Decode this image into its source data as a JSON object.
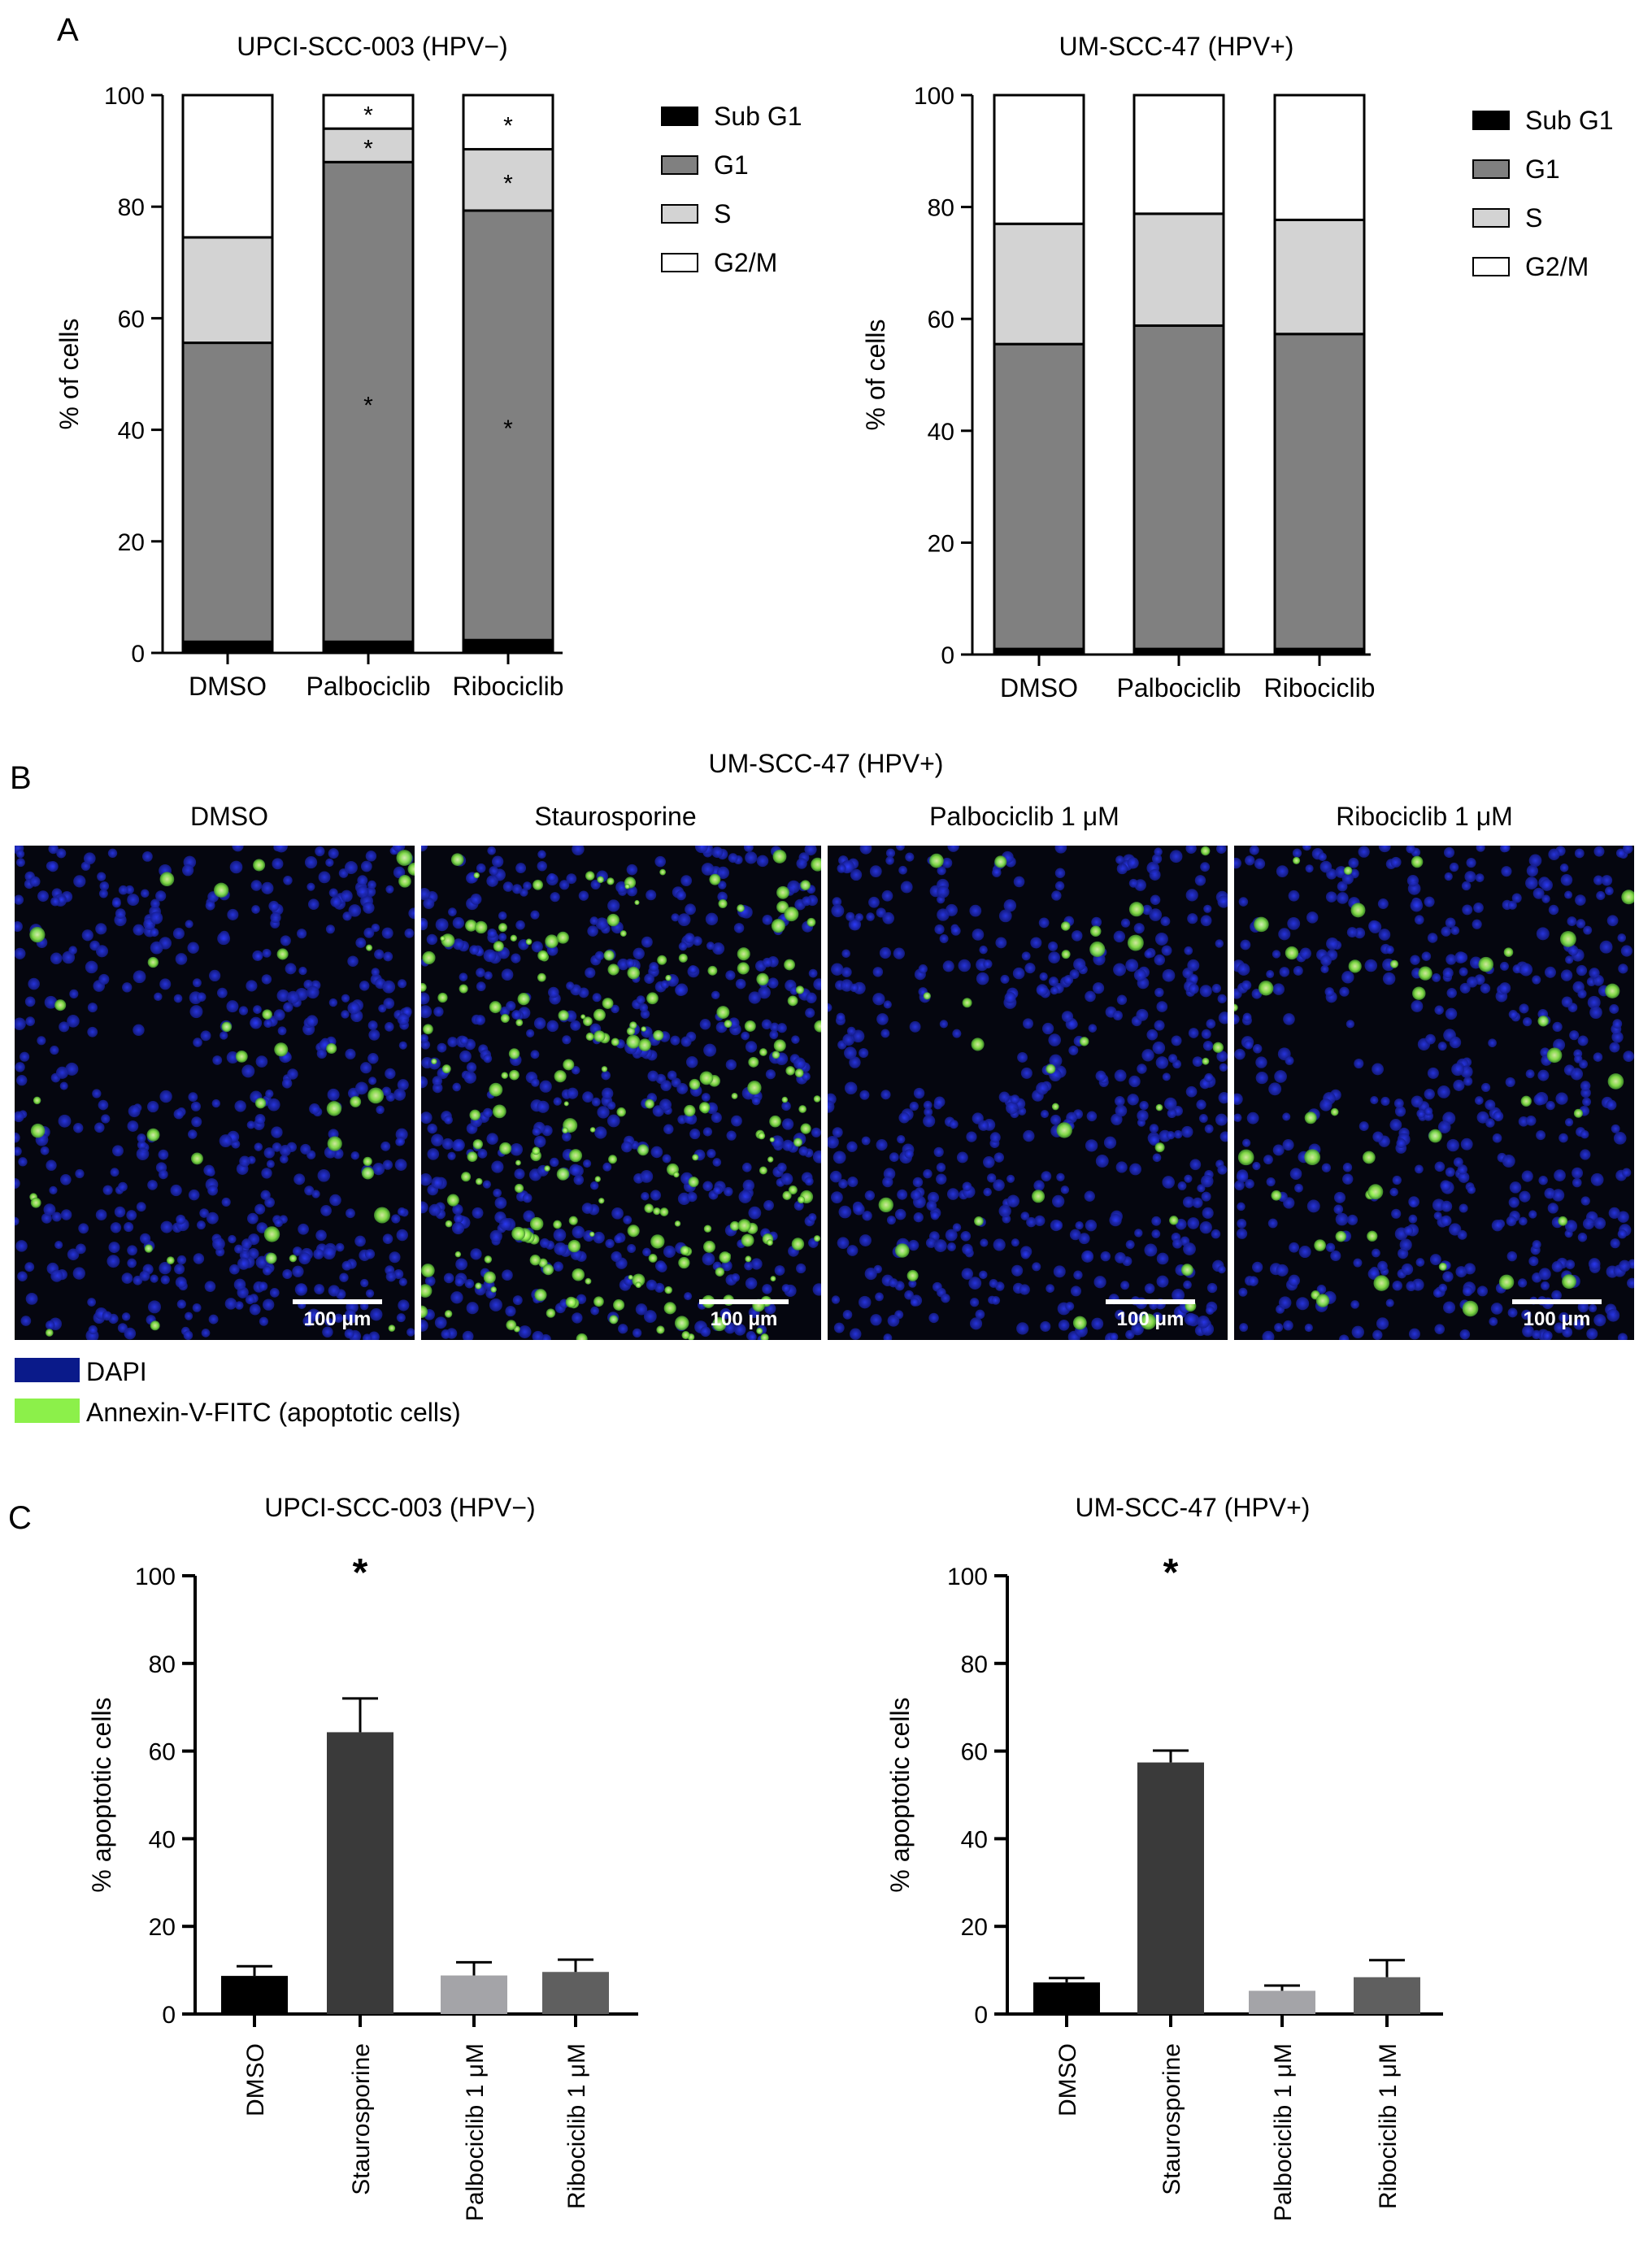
{
  "panel_labels": [
    "A",
    "B",
    "C"
  ],
  "chart_data": [
    {
      "type": "bar",
      "stacked": true,
      "panel": "A",
      "title": "UPCI-SCC-003 (HPV−)",
      "ylabel": "% of cells",
      "xlabel": "",
      "ylim": [
        0,
        100
      ],
      "yticks": [
        0,
        20,
        40,
        60,
        80,
        100
      ],
      "categories": [
        "DMSO",
        "Palbociclib",
        "Ribociclib"
      ],
      "series": [
        {
          "name": "Sub G1",
          "color": "#000000",
          "values": [
            2,
            2,
            2.3
          ]
        },
        {
          "name": "G1",
          "color": "#808080",
          "values": [
            53.6,
            86,
            77
          ]
        },
        {
          "name": "S",
          "color": "#d3d3d3",
          "values": [
            18.9,
            6,
            11
          ]
        },
        {
          "name": "G2/M",
          "color": "#ffffff",
          "values": [
            25.5,
            6,
            9.7
          ]
        }
      ],
      "significance": [
        {
          "category": "Palbociclib",
          "series": [
            "G1",
            "S",
            "G2/M"
          ],
          "label": "*"
        },
        {
          "category": "Ribociclib",
          "series": [
            "G1",
            "S",
            "G2/M"
          ],
          "label": "*"
        }
      ],
      "legend_position": "right",
      "grid": false
    },
    {
      "type": "bar",
      "stacked": true,
      "panel": "A",
      "title": "UM-SCC-47 (HPV+)",
      "ylabel": "% of cells",
      "xlabel": "",
      "ylim": [
        0,
        100
      ],
      "yticks": [
        0,
        20,
        40,
        60,
        80,
        100
      ],
      "categories": [
        "DMSO",
        "Palbociclib",
        "Ribociclib"
      ],
      "series": [
        {
          "name": "Sub G1",
          "color": "#000000",
          "values": [
            1,
            1,
            1
          ]
        },
        {
          "name": "G1",
          "color": "#808080",
          "values": [
            54.5,
            57.8,
            56.3
          ]
        },
        {
          "name": "S",
          "color": "#d3d3d3",
          "values": [
            21.5,
            20,
            20.4
          ]
        },
        {
          "name": "G2/M",
          "color": "#ffffff",
          "values": [
            23,
            21.2,
            22.3
          ]
        }
      ],
      "legend_position": "right",
      "grid": false
    },
    {
      "type": "bar",
      "panel": "C",
      "title": "UPCI-SCC-003 (HPV−)",
      "ylabel": "% apoptotic cells",
      "xlabel": "",
      "ylim": [
        0,
        100
      ],
      "yticks": [
        0,
        20,
        40,
        60,
        80,
        100
      ],
      "categories": [
        "DMSO",
        "Staurosporine",
        "Palbociclib 1 μM",
        "Ribociclib 1 μM"
      ],
      "values": [
        8.7,
        64.3,
        8.8,
        9.6
      ],
      "errors": [
        2.2,
        7.7,
        3.0,
        2.8
      ],
      "colors": [
        "#000000",
        "#3a3a3a",
        "#a4a4a8",
        "#5f5f5f"
      ],
      "significance": [
        {
          "category": "Staurosporine",
          "label": "*"
        }
      ],
      "grid": false
    },
    {
      "type": "bar",
      "panel": "C",
      "title": "UM-SCC-47 (HPV+)",
      "ylabel": "% apoptotic cells",
      "xlabel": "",
      "ylim": [
        0,
        100
      ],
      "yticks": [
        0,
        20,
        40,
        60,
        80,
        100
      ],
      "categories": [
        "DMSO",
        "Staurosporine",
        "Palbociclib 1 μM",
        "Ribociclib 1 μM"
      ],
      "values": [
        7.2,
        57.4,
        5.3,
        8.4
      ],
      "errors": [
        1.0,
        2.7,
        1.2,
        3.9
      ],
      "colors": [
        "#000000",
        "#3a3a3a",
        "#a4a4a8",
        "#5f5f5f"
      ],
      "significance": [
        {
          "category": "Staurosporine",
          "label": "*"
        }
      ],
      "grid": false
    }
  ],
  "microscopy": {
    "title": "UM-SCC-47 (HPV+)",
    "images": [
      {
        "label": "DMSO",
        "apoptotic_signal": "low"
      },
      {
        "label": "Staurosporine",
        "apoptotic_signal": "high"
      },
      {
        "label": "Palbociclib 1 μM",
        "apoptotic_signal": "low"
      },
      {
        "label": "Ribociclib 1 μM",
        "apoptotic_signal": "low"
      }
    ],
    "scale_bar_label": "100 μm",
    "legend": [
      {
        "label": "DAPI",
        "color": "#0a1a8a"
      },
      {
        "label": "Annexin-V-FITC (apoptotic cells)",
        "color": "#8cf04a"
      }
    ]
  }
}
